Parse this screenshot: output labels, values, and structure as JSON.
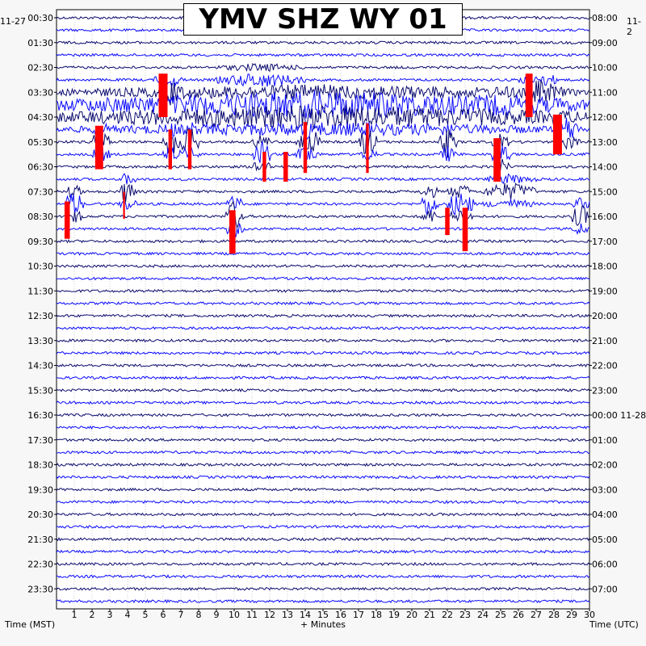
{
  "chart_data": {
    "type": "line",
    "title": "YMV SHZ WY 01",
    "xlabel": "+ Minutes",
    "left_axis_label": "Time (MST)",
    "right_axis_label": "Time (UTC)",
    "left_date": "11-27",
    "right_date": "11-2",
    "right_date_2": "11-28",
    "xlim": [
      0,
      30
    ],
    "x_ticks": [
      "1",
      "2",
      "3",
      "4",
      "5",
      "6",
      "7",
      "8",
      "9",
      "10",
      "11",
      "12",
      "13",
      "14",
      "15",
      "16",
      "17",
      "18",
      "19",
      "20",
      "21",
      "22",
      "23",
      "24",
      "25",
      "26",
      "27",
      "28",
      "29",
      "30"
    ],
    "left_ticks": [
      "00:30",
      "01:30",
      "02:30",
      "03:30",
      "04:30",
      "05:30",
      "06:30",
      "07:30",
      "08:30",
      "09:30",
      "10:30",
      "11:30",
      "12:30",
      "13:30",
      "14:30",
      "15:30",
      "16:30",
      "17:30",
      "18:30",
      "19:30",
      "20:30",
      "21:30",
      "22:30",
      "23:30"
    ],
    "right_ticks": [
      "08:00",
      "09:00",
      "10:00",
      "11:00",
      "12:00",
      "13:00",
      "14:00",
      "15:00",
      "16:00",
      "17:00",
      "18:00",
      "19:00",
      "20:00",
      "21:00",
      "22:00",
      "23:00",
      "00:00 11-28",
      "01:00",
      "02:00",
      "03:00",
      "04:00",
      "05:00",
      "06:00",
      "07:00"
    ],
    "trace_count": 48,
    "trace_interval_minutes": 30,
    "colors": {
      "dark": "#0a0a6e",
      "blue": "#0a0aff",
      "clip": "#ff0000"
    },
    "events": [
      {
        "start_min": 5.5,
        "end_min": 7.2,
        "row": 6,
        "amp": 18
      },
      {
        "start_min": 9.0,
        "end_min": 14.0,
        "row": 5,
        "amp": 10
      },
      {
        "start_min": 26.0,
        "end_min": 28.5,
        "row": 6,
        "amp": 16
      },
      {
        "start_min": 20.0,
        "end_min": 30.0,
        "row": 7,
        "amp": 14
      },
      {
        "start_min": 0.0,
        "end_min": 30.0,
        "row": 7,
        "amp": 18
      },
      {
        "start_min": 0.0,
        "end_min": 30.0,
        "row": 8,
        "amp": 16
      },
      {
        "start_min": 2.0,
        "end_min": 3.0,
        "row": 10,
        "amp": 20
      },
      {
        "start_min": 6.0,
        "end_min": 7.0,
        "row": 10,
        "amp": 20
      },
      {
        "start_min": 7.0,
        "end_min": 8.0,
        "row": 10,
        "amp": 20
      },
      {
        "start_min": 11.0,
        "end_min": 12.0,
        "row": 11,
        "amp": 20
      },
      {
        "start_min": 13.5,
        "end_min": 14.8,
        "row": 10,
        "amp": 22
      },
      {
        "start_min": 17.0,
        "end_min": 18.0,
        "row": 10,
        "amp": 20
      },
      {
        "start_min": 21.5,
        "end_min": 22.5,
        "row": 10,
        "amp": 20
      },
      {
        "start_min": 24.5,
        "end_min": 25.5,
        "row": 11,
        "amp": 20
      },
      {
        "start_min": 28.0,
        "end_min": 29.5,
        "row": 9,
        "amp": 18
      },
      {
        "start_min": 3.5,
        "end_min": 4.5,
        "row": 14,
        "amp": 16
      },
      {
        "start_min": 9.5,
        "end_min": 10.5,
        "row": 16,
        "amp": 22
      },
      {
        "start_min": 20.5,
        "end_min": 21.5,
        "row": 15,
        "amp": 18
      },
      {
        "start_min": 22.0,
        "end_min": 23.5,
        "row": 15,
        "amp": 18
      },
      {
        "start_min": 0.5,
        "end_min": 1.5,
        "row": 15,
        "amp": 18
      },
      {
        "start_min": 24.0,
        "end_min": 27.0,
        "row": 14,
        "amp": 12
      },
      {
        "start_min": 29.0,
        "end_min": 30.0,
        "row": 16,
        "amp": 16
      }
    ],
    "clipped": [
      {
        "min": 6.0,
        "width": 0.5,
        "top_row": 4.5,
        "bottom_row": 8.0
      },
      {
        "min": 26.6,
        "width": 0.4,
        "top_row": 4.5,
        "bottom_row": 8.0
      },
      {
        "min": 2.4,
        "width": 0.45,
        "top_row": 8.7,
        "bottom_row": 12.2
      },
      {
        "min": 28.2,
        "width": 0.5,
        "top_row": 7.8,
        "bottom_row": 11.0
      },
      {
        "min": 24.8,
        "width": 0.4,
        "top_row": 9.7,
        "bottom_row": 13.2
      },
      {
        "min": 9.9,
        "width": 0.35,
        "top_row": 15.5,
        "bottom_row": 19.0
      },
      {
        "min": 0.6,
        "width": 0.3,
        "top_row": 14.8,
        "bottom_row": 17.8
      },
      {
        "min": 23.0,
        "width": 0.3,
        "top_row": 15.3,
        "bottom_row": 18.8
      },
      {
        "min": 14.0,
        "width": 0.2,
        "top_row": 8.4,
        "bottom_row": 12.5
      },
      {
        "min": 12.9,
        "width": 0.25,
        "top_row": 10.8,
        "bottom_row": 13.2
      },
      {
        "min": 11.7,
        "width": 0.2,
        "top_row": 10.8,
        "bottom_row": 13.2
      },
      {
        "min": 7.5,
        "width": 0.2,
        "top_row": 9.0,
        "bottom_row": 12.2
      },
      {
        "min": 6.4,
        "width": 0.2,
        "top_row": 9.0,
        "bottom_row": 12.2
      },
      {
        "min": 17.5,
        "width": 0.15,
        "top_row": 8.5,
        "bottom_row": 12.5
      },
      {
        "min": 22.0,
        "width": 0.25,
        "top_row": 15.3,
        "bottom_row": 17.5
      },
      {
        "min": 3.8,
        "width": 0.1,
        "top_row": 14.0,
        "bottom_row": 16.2
      }
    ]
  }
}
